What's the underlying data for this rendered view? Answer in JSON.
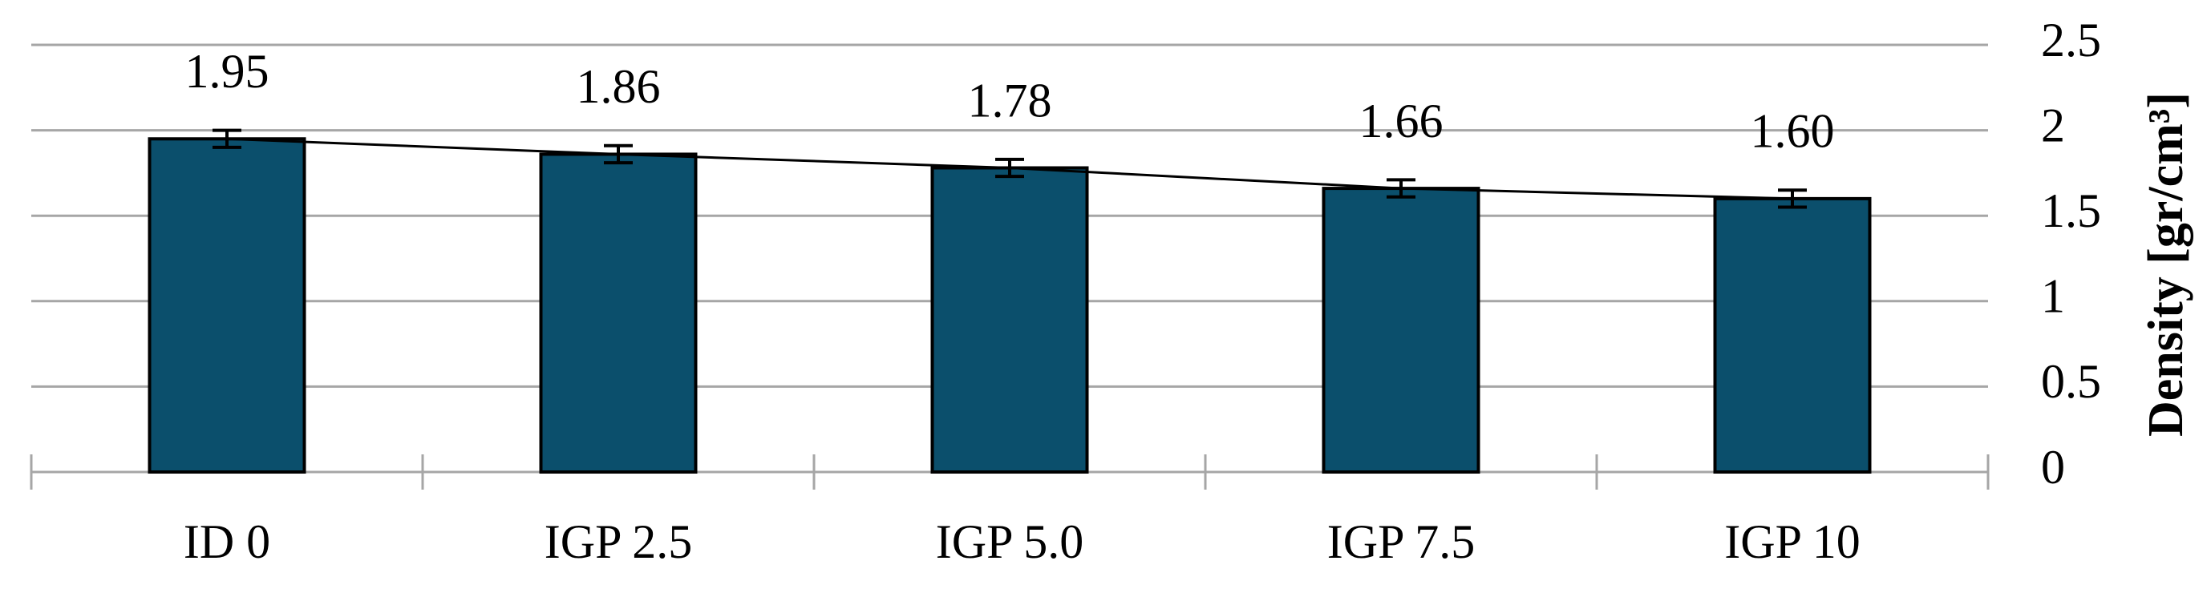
{
  "chart_data": {
    "type": "bar",
    "categories": [
      "ID 0",
      "IGP 2.5",
      "IGP 5.0",
      "IGP 7.5",
      "IGP 10"
    ],
    "values": [
      1.95,
      1.86,
      1.78,
      1.66,
      1.6
    ],
    "value_labels": [
      "1.95",
      "1.86",
      "1.78",
      "1.66",
      "1.60"
    ],
    "errors": [
      0.05,
      0.05,
      0.05,
      0.05,
      0.05
    ],
    "color": "#0b4f6c",
    "y_axis_label": "Density [gr/cm³]",
    "y_axis_side": "right",
    "ylim": [
      0,
      2.5
    ],
    "yticks": [
      0,
      0.5,
      1,
      1.5,
      2,
      2.5
    ],
    "grid": true,
    "line": true
  }
}
